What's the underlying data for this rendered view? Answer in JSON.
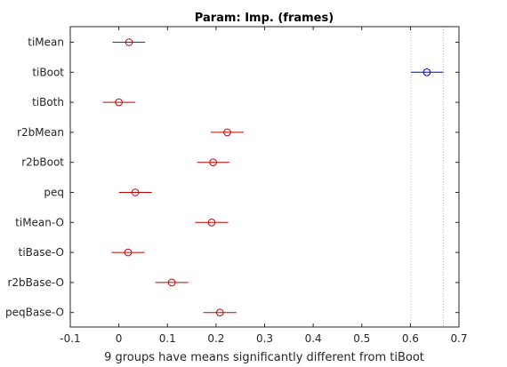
{
  "chart_data": {
    "type": "multiple-comparison",
    "title": "Param: Imp. (frames)",
    "xlabel": "9 groups have means significantly different from tiBoot",
    "ylabel": "",
    "xlim": [
      -0.1,
      0.7
    ],
    "xticks": [
      -0.1,
      0,
      0.1,
      0.2,
      0.3,
      0.4,
      0.5,
      0.6,
      0.7
    ],
    "xtick_labels": [
      "-0.1",
      "0",
      "0.1",
      "0.2",
      "0.3",
      "0.4",
      "0.5",
      "0.6",
      "0.7"
    ],
    "grid": false,
    "reference_interval": [
      0.601,
      0.668
    ],
    "groups": [
      {
        "name": "tiMean",
        "mean": 0.021,
        "low": -0.013,
        "high": 0.054,
        "highlight": false
      },
      {
        "name": "tiBoot",
        "mean": 0.634,
        "low": 0.601,
        "high": 0.668,
        "highlight": true
      },
      {
        "name": "tiBoth",
        "mean": 0.0,
        "low": -0.033,
        "high": 0.034,
        "highlight": false
      },
      {
        "name": "r2bMean",
        "mean": 0.223,
        "low": 0.189,
        "high": 0.257,
        "highlight": false
      },
      {
        "name": "r2bBoot",
        "mean": 0.194,
        "low": 0.161,
        "high": 0.228,
        "highlight": false
      },
      {
        "name": "peq",
        "mean": 0.034,
        "low": 0.0,
        "high": 0.068,
        "highlight": false
      },
      {
        "name": "tiMean-O",
        "mean": 0.191,
        "low": 0.157,
        "high": 0.225,
        "highlight": false
      },
      {
        "name": "tiBase-O",
        "mean": 0.019,
        "low": -0.015,
        "high": 0.053,
        "highlight": false
      },
      {
        "name": "r2bBase-O",
        "mean": 0.109,
        "low": 0.075,
        "high": 0.143,
        "highlight": false
      },
      {
        "name": "peqBase-O",
        "mean": 0.208,
        "low": 0.174,
        "high": 0.242,
        "highlight": false
      }
    ],
    "colors": {
      "highlight": "#0000c8",
      "different": "#c80000",
      "reference_line": "#b4b4b4",
      "axes": "#262626"
    }
  }
}
